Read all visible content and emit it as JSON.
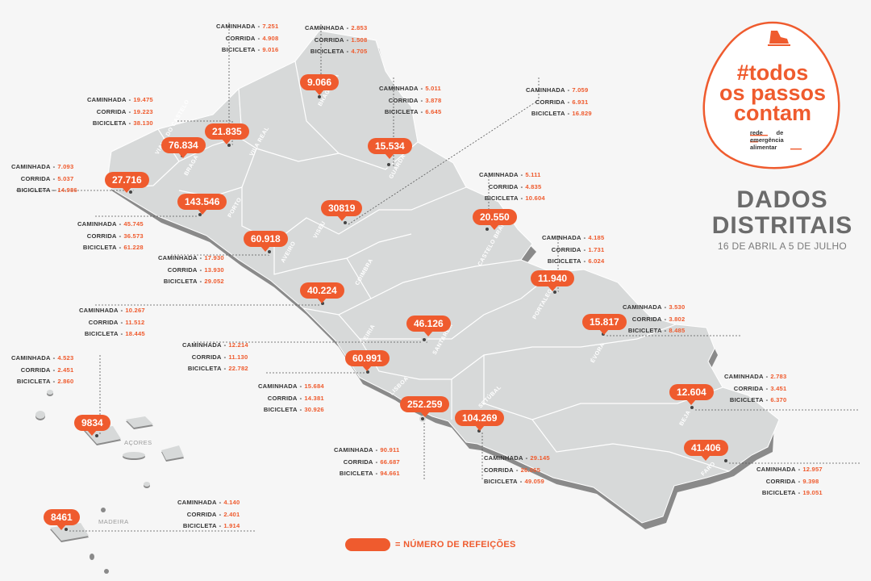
{
  "title": {
    "line1": "DADOS",
    "line2": "DISTRITAIS",
    "subtitle": "16 DE ABRIL A 5 DE JULHO"
  },
  "logo": {
    "hashtag_line1": "#todos",
    "hashtag_line2": "os passos",
    "hashtag_line3": "contam",
    "sub_line1": "rede",
    "sub_line2": "de",
    "sub_line3": "emergência",
    "sub_line4": "alimentar",
    "icon": "shoe-icon"
  },
  "legend": {
    "text": "= NÚMERO DE REFEIÇÕES"
  },
  "stat_labels": {
    "walk": "CAMINHADA",
    "run": "CORRIDA",
    "bike": "BICICLETA",
    "sep": "-"
  },
  "colors": {
    "accent": "#ef5b2e",
    "land": "#d7d9d9",
    "background": "#f6f6f6",
    "shadow": "#8a8a8a"
  },
  "region_labels": [
    "VIANA DO CASTELO",
    "BRAGA",
    "PORTO",
    "VILA REAL",
    "BRAGANÇA",
    "GUARDA",
    "VISEU",
    "AVEIRO",
    "COIMBRA",
    "CASTELO BRANCO",
    "LEIRIA",
    "SANTARÉM",
    "PORTALEGRE",
    "LISBOA",
    "SETÚBAL",
    "ÉVORA",
    "BEJA",
    "FARO"
  ],
  "island_labels": {
    "azores": "AÇORES",
    "madeira": "MADEIRA"
  },
  "districts": [
    {
      "id": "viana",
      "meals": "27.716",
      "walk": "7.093",
      "run": "5.037",
      "bike": "14.986"
    },
    {
      "id": "braga",
      "meals": "76.834",
      "walk": "19.475",
      "run": "19.223",
      "bike": "38.130"
    },
    {
      "id": "vilareal",
      "meals": "21.835",
      "walk": "7.251",
      "run": "4.908",
      "bike": "9.016"
    },
    {
      "id": "braganca",
      "meals": "9.066",
      "walk": "2.853",
      "run": "1.508",
      "bike": "4.705"
    },
    {
      "id": "guarda",
      "meals": "15.534",
      "walk": "5.011",
      "run": "3.878",
      "bike": "6.645"
    },
    {
      "id": "viseu",
      "meals": "30819",
      "walk": "7.059",
      "run": "6.931",
      "bike": "16.829"
    },
    {
      "id": "porto",
      "meals": "143.546",
      "walk": "45.745",
      "run": "36.573",
      "bike": "61.228"
    },
    {
      "id": "aveiro",
      "meals": "60.918",
      "walk": "17.930",
      "run": "13.930",
      "bike": "29.052"
    },
    {
      "id": "castelobranco",
      "meals": "20.550",
      "walk": "5.111",
      "run": "4.835",
      "bike": "10.604"
    },
    {
      "id": "coimbra",
      "meals": "40.224",
      "walk": "10.267",
      "run": "11.512",
      "bike": "18.445"
    },
    {
      "id": "portalegre",
      "meals": "11.940",
      "walk": "4.185",
      "run": "1.731",
      "bike": "6.024"
    },
    {
      "id": "santarem",
      "meals": "46.126",
      "walk": "12.214",
      "run": "11.130",
      "bike": "22.782"
    },
    {
      "id": "leiria",
      "meals": "60.991",
      "walk": "15.684",
      "run": "14.381",
      "bike": "30.926"
    },
    {
      "id": "evora",
      "meals": "15.817",
      "walk": "3.530",
      "run": "3.802",
      "bike": "8.485"
    },
    {
      "id": "lisboa",
      "meals": "252.259",
      "walk": "90.911",
      "run": "66.687",
      "bike": "94.661"
    },
    {
      "id": "setubal",
      "meals": "104.269",
      "walk": "29.145",
      "run": "26.065",
      "bike": "49.059"
    },
    {
      "id": "beja",
      "meals": "12.604",
      "walk": "2.783",
      "run": "3.451",
      "bike": "6.370"
    },
    {
      "id": "faro",
      "meals": "41.406",
      "walk": "12.957",
      "run": "9.398",
      "bike": "19.051"
    },
    {
      "id": "acores",
      "meals": "9834",
      "walk": "4.523",
      "run": "2.451",
      "bike": "2.860"
    },
    {
      "id": "madeira",
      "meals": "8461",
      "walk": "4.140",
      "run": "2.401",
      "bike": "1.914"
    }
  ]
}
